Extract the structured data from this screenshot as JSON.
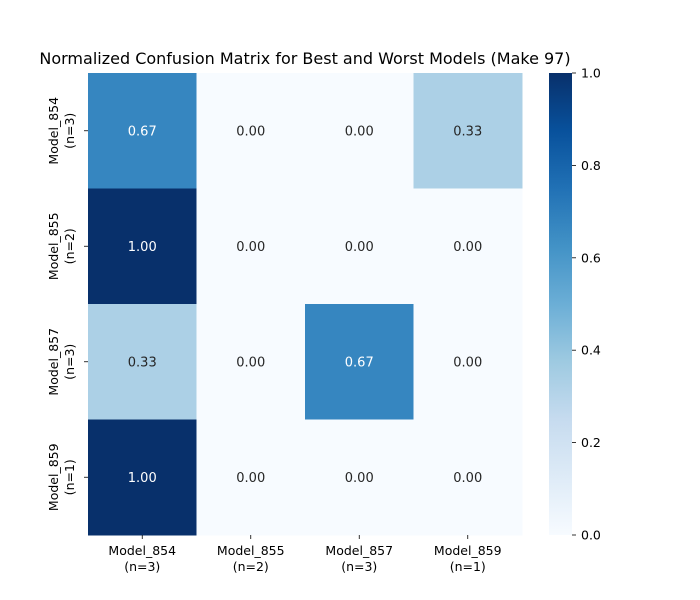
{
  "chart_data": {
    "type": "heatmap",
    "title": "Normalized Confusion Matrix for Best and Worst Models (Make 97)",
    "xlabel": "",
    "ylabel": "",
    "rows": [
      {
        "name": "Model_854",
        "n": "(n=3)"
      },
      {
        "name": "Model_855",
        "n": "(n=2)"
      },
      {
        "name": "Model_857",
        "n": "(n=3)"
      },
      {
        "name": "Model_859",
        "n": "(n=1)"
      }
    ],
    "columns": [
      {
        "name": "Model_854",
        "n": "(n=3)"
      },
      {
        "name": "Model_855",
        "n": "(n=2)"
      },
      {
        "name": "Model_857",
        "n": "(n=3)"
      },
      {
        "name": "Model_859",
        "n": "(n=1)"
      }
    ],
    "values": [
      [
        0.67,
        0.0,
        0.0,
        0.33
      ],
      [
        1.0,
        0.0,
        0.0,
        0.0
      ],
      [
        0.33,
        0.0,
        0.67,
        0.0
      ],
      [
        1.0,
        0.0,
        0.0,
        0.0
      ]
    ],
    "cell_labels": [
      [
        "0.67",
        "0.00",
        "0.00",
        "0.33"
      ],
      [
        "1.00",
        "0.00",
        "0.00",
        "0.00"
      ],
      [
        "0.33",
        "0.00",
        "0.67",
        "0.00"
      ],
      [
        "1.00",
        "0.00",
        "0.00",
        "0.00"
      ]
    ],
    "colormap": "Blues",
    "vmin": 0,
    "vmax": 1,
    "colorbar": {
      "ticks": [
        0.0,
        0.2,
        0.4,
        0.6,
        0.8,
        1.0
      ],
      "tick_labels": [
        "0.0",
        "0.2",
        "0.4",
        "0.6",
        "0.8",
        "1.0"
      ]
    },
    "grid": false,
    "legend": "colorbar-right"
  }
}
